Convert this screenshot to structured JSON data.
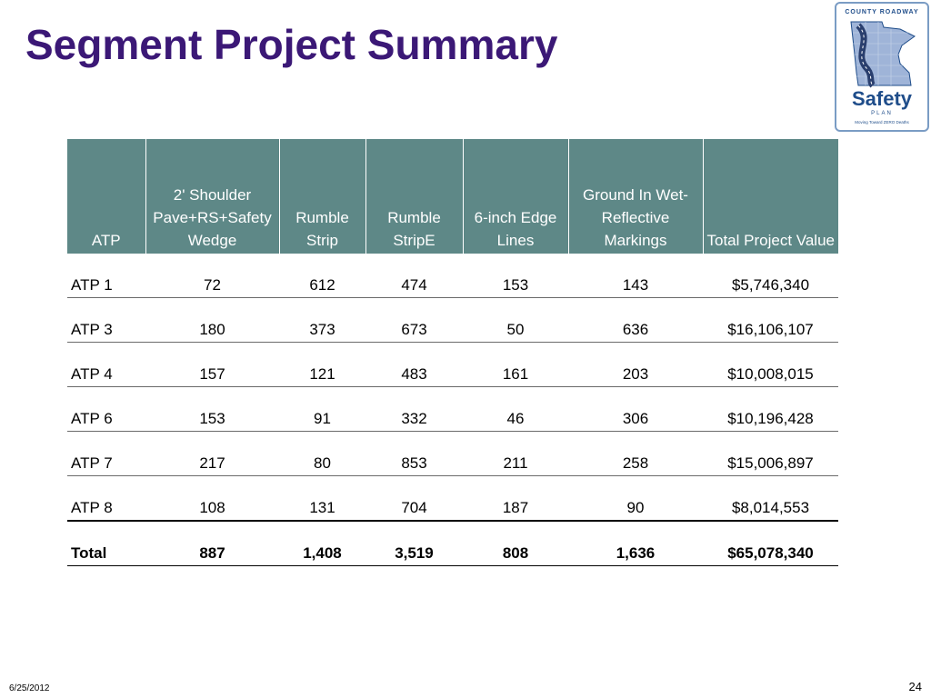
{
  "slide": {
    "title": "Segment Project Summary",
    "date": "6/25/2012",
    "page_number": "24"
  },
  "logo": {
    "top_text": "COUNTY ROADWAY",
    "brand": "Safety",
    "plan": "PLAN",
    "tagline": "Moving Toward ZERO Deaths",
    "colors": {
      "primary": "#1f4d8a",
      "accent": "#7a9cc4"
    }
  },
  "table": {
    "header_color": "#5e8887",
    "columns": [
      "ATP",
      "2' Shoulder Pave+RS+Safety Wedge",
      "Rumble Strip",
      "Rumble StripE",
      "6-inch Edge Lines",
      "Ground In Wet-Reflective Markings",
      "Total Project Value"
    ],
    "rows": [
      [
        "ATP 1",
        "72",
        "612",
        "474",
        "153",
        "143",
        "$5,746,340"
      ],
      [
        "ATP 3",
        "180",
        "373",
        "673",
        "50",
        "636",
        "$16,106,107"
      ],
      [
        "ATP 4",
        "157",
        "121",
        "483",
        "161",
        "203",
        "$10,008,015"
      ],
      [
        "ATP 6",
        "153",
        "91",
        "332",
        "46",
        "306",
        "$10,196,428"
      ],
      [
        "ATP 7",
        "217",
        "80",
        "853",
        "211",
        "258",
        "$15,006,897"
      ],
      [
        "ATP 8",
        "108",
        "131",
        "704",
        "187",
        "90",
        "$8,014,553"
      ]
    ],
    "total": [
      "Total",
      "887",
      "1,408",
      "3,519",
      "808",
      "1,636",
      "$65,078,340"
    ]
  }
}
